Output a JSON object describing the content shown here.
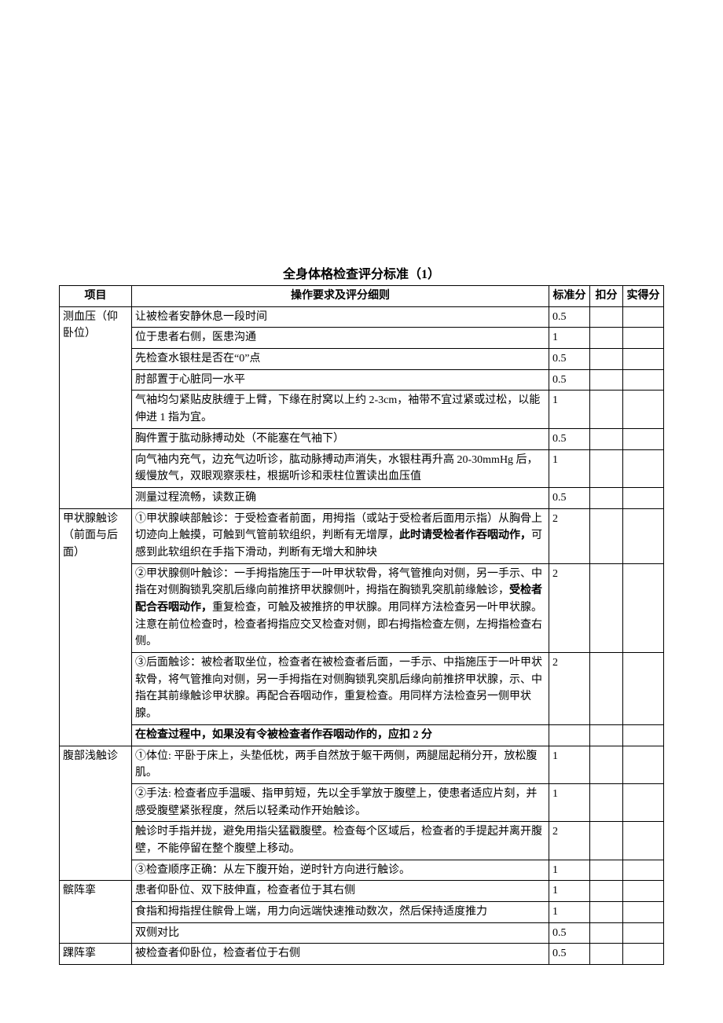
{
  "title": "全身体格检查评分标准（1）",
  "headers": {
    "col1": "项目",
    "col2": "操作要求及评分细则",
    "col3": "标准分",
    "col4": "扣分",
    "col5": "实得分"
  },
  "colors": {
    "background": "#ffffff",
    "border": "#000000",
    "text": "#000000"
  },
  "typography": {
    "title_fontsize": 16,
    "body_fontsize": 14,
    "font_family": "SimSun"
  },
  "sections": [
    {
      "name": "测血压（仰卧位）",
      "rows": [
        {
          "desc": "让被检者安静休息一段时间",
          "score": "0.5"
        },
        {
          "desc": "位于患者右侧，医患沟通",
          "score": "1"
        },
        {
          "desc": "先检查水银柱是否在“0”点",
          "score": "0.5"
        },
        {
          "desc": "肘部置于心脏同一水平",
          "score": "0.5"
        },
        {
          "desc": "气袖均匀紧贴皮肤缠于上臂，下缘在肘窝以上约 2-3cm，袖带不宜过紧或过松，以能伸进 1 指为宜。",
          "score": "1"
        },
        {
          "desc": "胸件置于肱动脉搏动处（不能塞在气袖下）",
          "score": "0.5"
        },
        {
          "desc": "向气袖内充气，边充气边听诊，肱动脉搏动声消失，水银柱再升高 20-30mmHg 后，缓慢放气，双眼观察汞柱，根据听诊和汞柱位置读出血压值",
          "score": "1"
        },
        {
          "desc": "测量过程流畅，读数正确",
          "score": "0.5"
        }
      ]
    },
    {
      "name": "甲状腺触诊（前面与后面）",
      "rows": [
        {
          "desc_pre": "①甲状腺峡部触诊：于受检查者前面，用拇指（或站于受检者后面用示指）从胸骨上切迹向上触摸，可触到气管前软组织，判断有无增厚，",
          "desc_bold": "此时请受检者作吞咽动作，",
          "desc_post": "可感到此软组织在手指下滑动，判断有无增大和肿块",
          "score": "2"
        },
        {
          "desc_pre": "②甲状腺侧叶触诊：一手拇指施压于一叶甲状软骨，将气管推向对侧，另一手示、中指在对侧胸锁乳突肌后缘向前推挤甲状腺侧叶，拇指在胸锁乳突肌前缘触诊，",
          "desc_bold": "受检者配合吞咽动作，",
          "desc_post": "重复检查，可触及被推挤的甲状腺。用同样方法检查另一叶甲状腺。注意在前位检查时，检查者拇指应交叉检查对侧，即右拇指检查左侧，左拇指检查右侧。",
          "score": "2"
        },
        {
          "desc": "③后面触诊：被检者取坐位，检查者在被检查者后面，一手示、中指施压于一叶甲状软骨，将气管推向对侧，另一手拇指在对侧胸锁乳突肌后缘向前推挤甲状腺，示、中指在其前缘触诊甲状腺。再配合吞咽动作，重复检查。用同样方法检查另一侧甲状腺。",
          "score": "2"
        }
      ],
      "note": "在检查过程中，如果没有令被检查者作吞咽动作的，应扣 2 分"
    },
    {
      "name": "腹部浅触诊",
      "rows": [
        {
          "desc": "①体位: 平卧于床上，头垫低枕，两手自然放于躯干两侧，两腿屈起稍分开，放松腹肌。",
          "score": "1"
        },
        {
          "desc": "②手法: 检查者应手温暖、指甲剪短，先以全手掌放于腹壁上，使患者适应片刻，并感受腹壁紧张程度，然后以轻柔动作开始触诊。",
          "score": "1"
        },
        {
          "desc": "触诊时手指并拢，避免用指尖猛戳腹壁。检查每个区域后，检查者的手提起并离开腹壁，不能停留在整个腹壁上移动。",
          "score": "2"
        },
        {
          "desc": "③检查顺序正确：从左下腹开始，逆时针方向进行触诊。",
          "score": "1"
        }
      ]
    },
    {
      "name": "髌阵挛",
      "rows": [
        {
          "desc": "患者仰卧位、双下肢伸直，检查者位于其右侧",
          "score": "1"
        },
        {
          "desc": "食指和拇指捏住髌骨上端，用力向远端快速推动数次，然后保持适度推力",
          "score": "1"
        },
        {
          "desc": "双侧对比",
          "score": "0.5"
        }
      ]
    },
    {
      "name": "踝阵挛",
      "rows": [
        {
          "desc": "被检查者仰卧位，检查者位于右侧",
          "score": "0.5"
        }
      ]
    }
  ]
}
